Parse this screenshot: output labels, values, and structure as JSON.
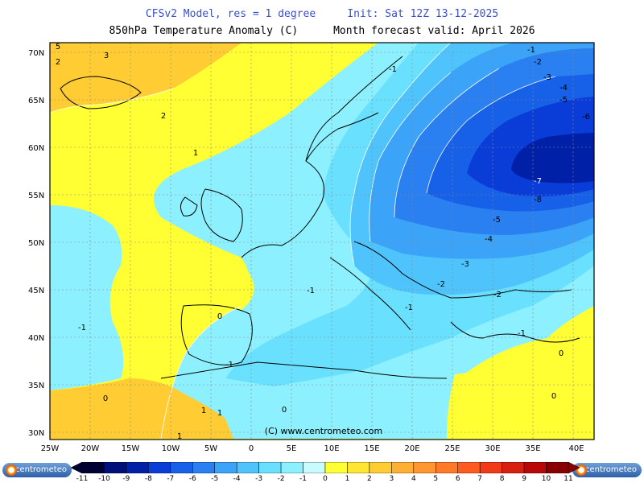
{
  "header": {
    "line1_left": "CFSv2 Model, res = 1 degree",
    "line1_right": "Init: Sat 12Z 13-12-2025",
    "line2_left": "850hPa Temperature Anomaly (C)",
    "line2_right": "Month forecast valid: April 2026"
  },
  "map": {
    "lat_labels": [
      "70N",
      "65N",
      "60N",
      "55N",
      "50N",
      "45N",
      "40N",
      "35N",
      "30N"
    ],
    "lon_labels": [
      "25W",
      "20W",
      "15W",
      "10W",
      "5W",
      "0",
      "5E",
      "10E",
      "15E",
      "20E",
      "25E",
      "30E",
      "35E",
      "40E"
    ],
    "copyright": "(C) www.centrometeo.com",
    "contour_labels": [
      "-1",
      "-2",
      "-3",
      "-4",
      "-5",
      "-6",
      "-7",
      "-8",
      "-5",
      "-4",
      "-3",
      "-2",
      "-2",
      "-1",
      "-1",
      "-1",
      "-1",
      "-1",
      "-1",
      "0",
      "0",
      "0",
      "0",
      "0",
      "1",
      "1",
      "1",
      "1",
      "2",
      "2",
      "3",
      "5"
    ]
  },
  "colorbar": {
    "labels": [
      "-11",
      "-10",
      "-9",
      "-8",
      "-7",
      "-6",
      "-5",
      "-4",
      "-3",
      "-2",
      "-1",
      "0",
      "1",
      "2",
      "3",
      "4",
      "5",
      "6",
      "7",
      "8",
      "9",
      "10",
      "11"
    ],
    "colors": [
      "#000033",
      "#00107a",
      "#0020a8",
      "#0a3dd8",
      "#1760e8",
      "#2a80f0",
      "#3ba3f8",
      "#4fc4fc",
      "#6ae0ff",
      "#8cf0ff",
      "#c8fbff",
      "#ffff33",
      "#ffe633",
      "#ffcc33",
      "#ffb033",
      "#ff9630",
      "#ff7a28",
      "#ff5a20",
      "#f03a18",
      "#d82010",
      "#b80808",
      "#8a0000"
    ]
  },
  "logos": {
    "left": "centrometeo",
    "right": "centrometeo"
  }
}
